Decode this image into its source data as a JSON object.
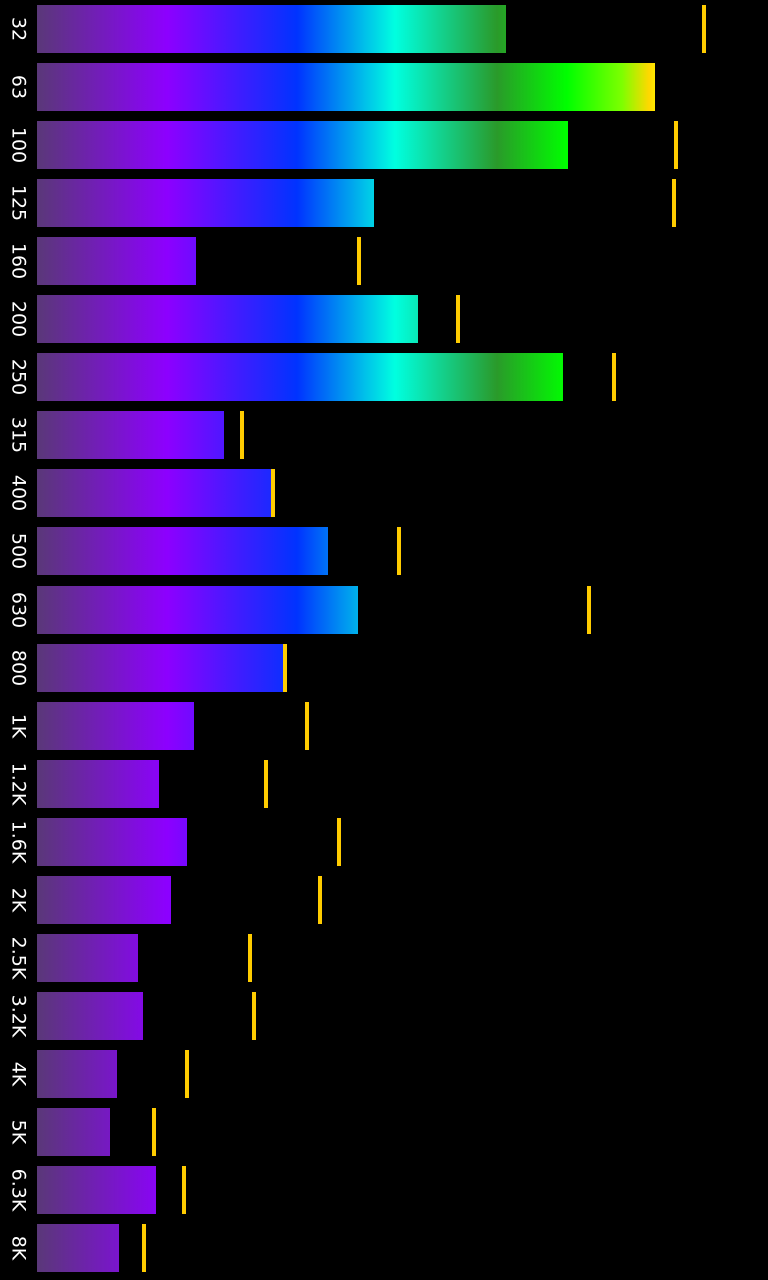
{
  "spectrum": {
    "colors": {
      "background": "#000000",
      "label": "#ffffff",
      "peak": "#ffcc00",
      "gradient": [
        "#5a3878",
        "#8d00ff",
        "#0033ff",
        "#00ffe0",
        "#2a9a2a",
        "#00ff00",
        "#ffff00"
      ]
    },
    "bands": [
      {
        "label": "32",
        "level": 0.67,
        "peak": 0.953
      },
      {
        "label": "63",
        "level": 0.883,
        "peak": null
      },
      {
        "label": "100",
        "level": 0.759,
        "peak": 0.913
      },
      {
        "label": "125",
        "level": 0.481,
        "peak": 0.91
      },
      {
        "label": "160",
        "level": 0.227,
        "peak": 0.46
      },
      {
        "label": "200",
        "level": 0.544,
        "peak": 0.601
      },
      {
        "label": "250",
        "level": 0.751,
        "peak": 0.824
      },
      {
        "label": "315",
        "level": 0.267,
        "peak": 0.293
      },
      {
        "label": "400",
        "level": 0.337,
        "peak": 0.337
      },
      {
        "label": "500",
        "level": 0.416,
        "peak": 0.517
      },
      {
        "label": "630",
        "level": 0.459,
        "peak": 0.789
      },
      {
        "label": "800",
        "level": 0.354,
        "peak": 0.354
      },
      {
        "label": "1K",
        "level": 0.224,
        "peak": 0.386
      },
      {
        "label": "1.2K",
        "level": 0.174,
        "peak": 0.327
      },
      {
        "label": "1.6K",
        "level": 0.214,
        "peak": 0.431
      },
      {
        "label": "2K",
        "level": 0.191,
        "peak": 0.404
      },
      {
        "label": "2.5K",
        "level": 0.144,
        "peak": 0.304
      },
      {
        "label": "3.2K",
        "level": 0.151,
        "peak": 0.31
      },
      {
        "label": "4K",
        "level": 0.114,
        "peak": 0.214
      },
      {
        "label": "5K",
        "level": 0.104,
        "peak": 0.167
      },
      {
        "label": "6.3K",
        "level": 0.17,
        "peak": 0.21
      },
      {
        "label": "8K",
        "level": 0.117,
        "peak": 0.153
      }
    ]
  }
}
